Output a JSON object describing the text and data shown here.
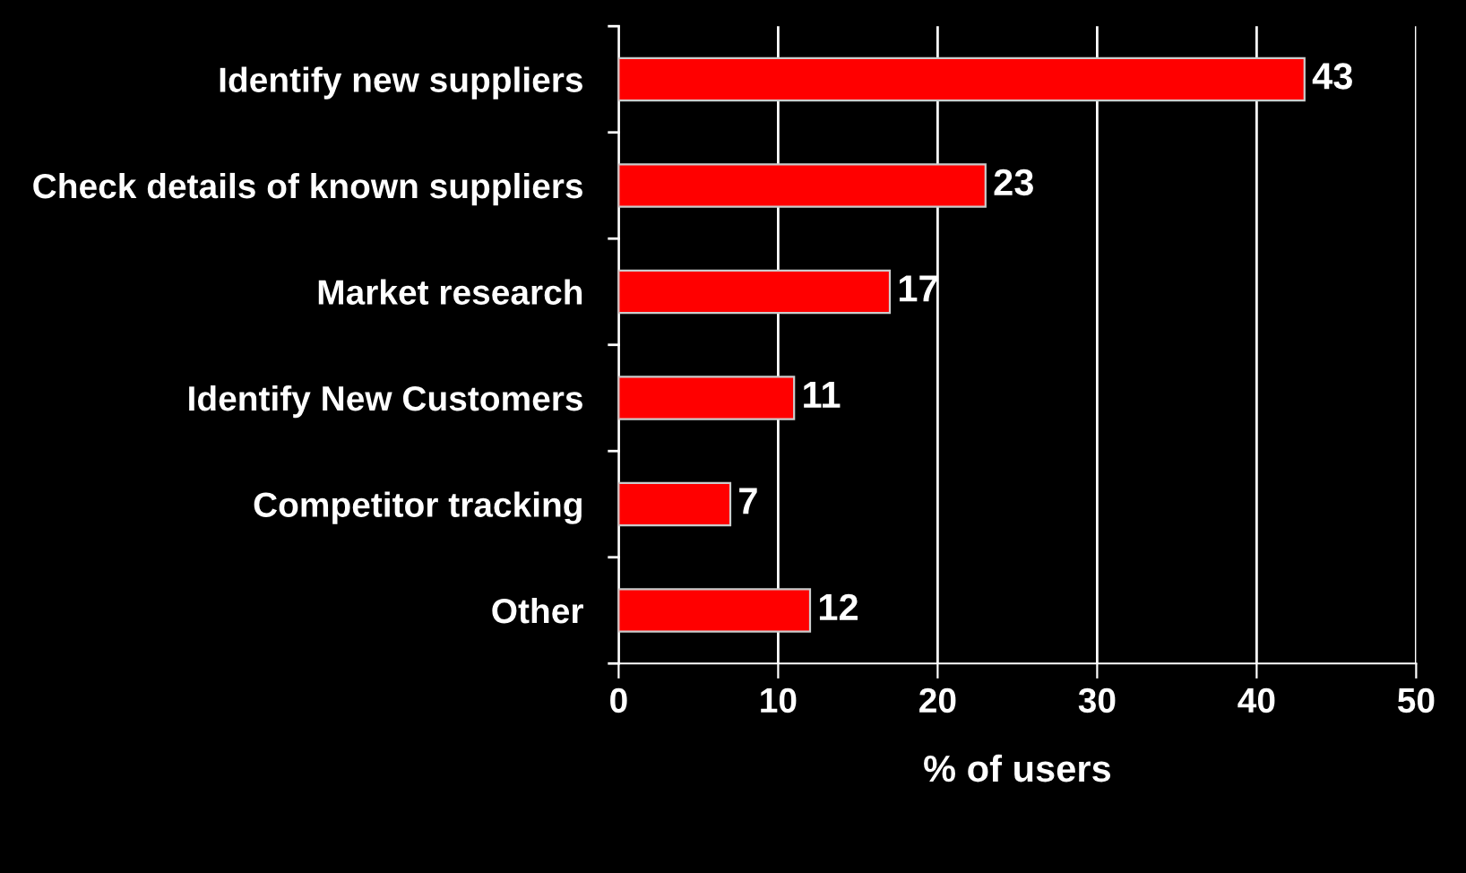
{
  "chart_data": {
    "type": "bar",
    "orientation": "horizontal",
    "categories": [
      "Identify new suppliers",
      "Check details of known suppliers",
      "Market research",
      "Identify New Customers",
      "Competitor tracking",
      "Other"
    ],
    "values": [
      43,
      23,
      17,
      11,
      7,
      12
    ],
    "color": "#ff0000",
    "xlim": [
      0,
      50
    ],
    "xticks": [
      0,
      10,
      20,
      30,
      40,
      50
    ],
    "xlabel": "% of users",
    "grid": "x",
    "data_labels": true
  }
}
